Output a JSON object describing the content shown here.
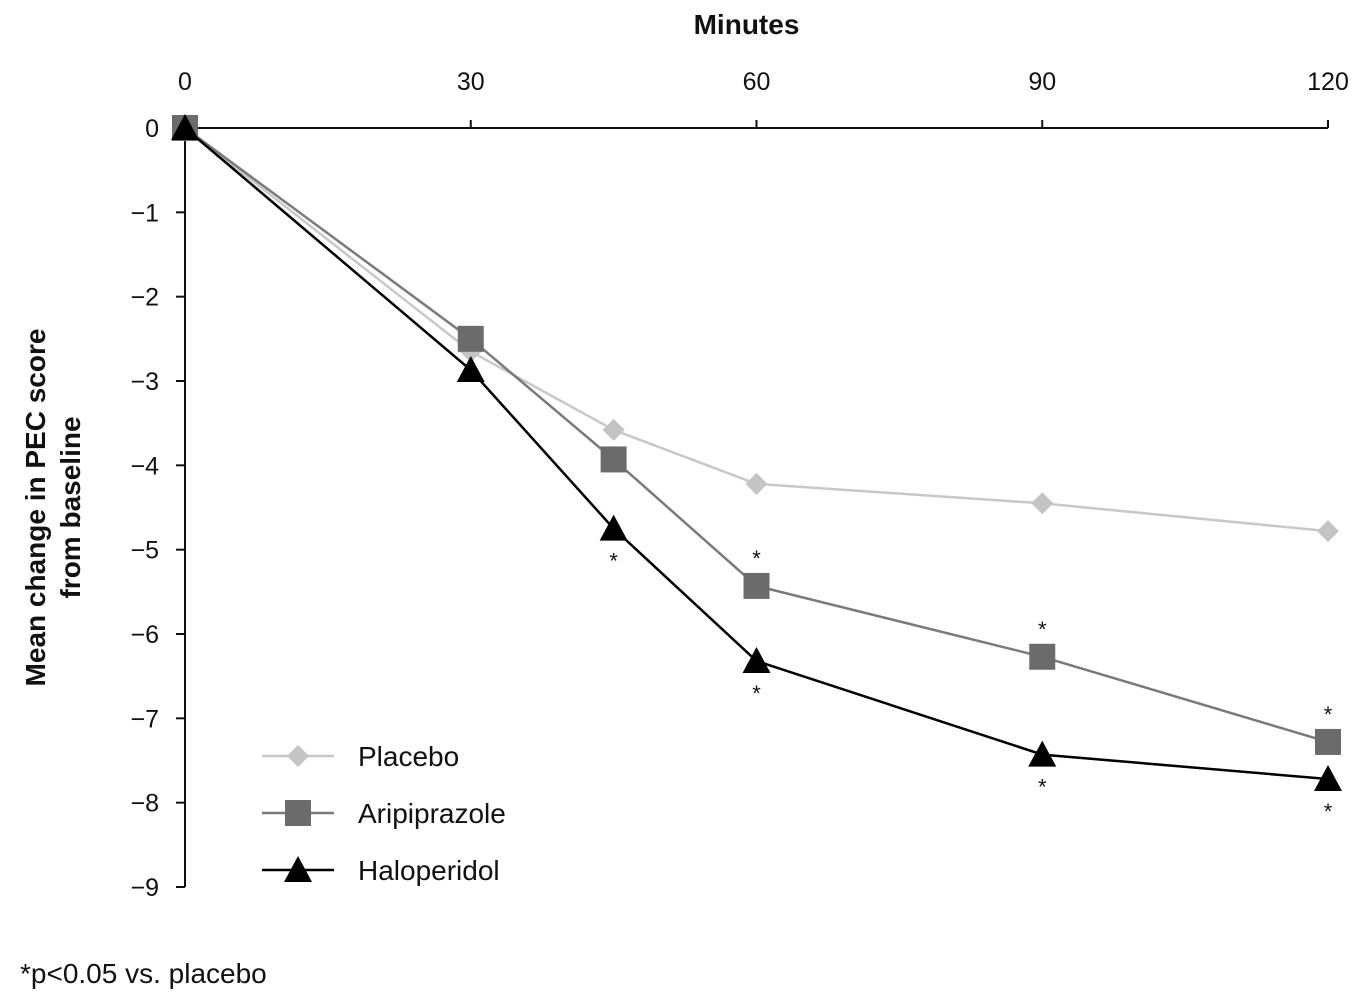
{
  "chart_data": {
    "type": "line",
    "title": "",
    "xlabel": "Minutes",
    "ylabel_line1": "Mean change in PEC score",
    "ylabel_line2": "from baseline",
    "x_ticks": [
      0,
      30,
      60,
      90,
      120
    ],
    "y_ticks": [
      0,
      -1,
      -2,
      -3,
      -4,
      -5,
      -6,
      -7,
      -8,
      -9
    ],
    "y_tick_labels": [
      "0",
      "−1",
      "−2",
      "−3",
      "−4",
      "−5",
      "−6",
      "−7",
      "−8",
      "−9"
    ],
    "xlim": [
      0,
      120
    ],
    "ylim": [
      -9,
      0
    ],
    "x_axis_position": "top",
    "grid": false,
    "legend_position": "bottom-left",
    "x": [
      0,
      30,
      45,
      60,
      90,
      120
    ],
    "series": [
      {
        "name": "Placebo",
        "marker": "diamond",
        "color": "#c4c4c4",
        "line_color": "#c8c8c8",
        "values": [
          0,
          -2.65,
          -3.58,
          -4.22,
          -4.45,
          -4.78
        ]
      },
      {
        "name": "Aripiprazole",
        "marker": "square",
        "color": "#6b6b6b",
        "line_color": "#7a7a7a",
        "values": [
          0,
          -2.5,
          -3.93,
          -5.43,
          -6.27,
          -7.28
        ]
      },
      {
        "name": "Haloperidol",
        "marker": "triangle",
        "color": "#000000",
        "line_color": "#000000",
        "values": [
          0,
          -2.87,
          -4.75,
          -6.32,
          -7.43,
          -7.72
        ]
      }
    ],
    "annotations": [
      {
        "text": "*",
        "series": "Aripiprazole",
        "x": 60,
        "position": "above"
      },
      {
        "text": "*",
        "series": "Aripiprazole",
        "x": 90,
        "position": "above"
      },
      {
        "text": "*",
        "series": "Aripiprazole",
        "x": 120,
        "position": "above"
      },
      {
        "text": "*",
        "series": "Haloperidol",
        "x": 45,
        "position": "below"
      },
      {
        "text": "*",
        "series": "Haloperidol",
        "x": 60,
        "position": "below"
      },
      {
        "text": "*",
        "series": "Haloperidol",
        "x": 90,
        "position": "below"
      },
      {
        "text": "*",
        "series": "Haloperidol",
        "x": 120,
        "position": "below"
      }
    ]
  },
  "footnote": "*p<0.05 vs. placebo"
}
